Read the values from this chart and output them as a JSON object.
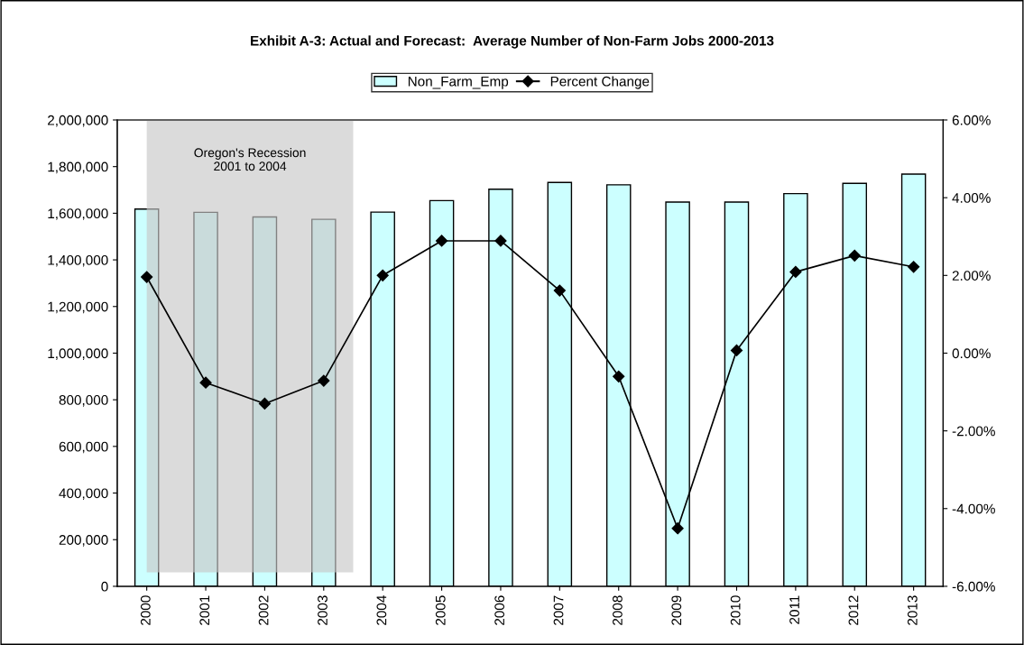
{
  "chart_data": {
    "type": "bar",
    "title": "Exhibit A-3: Actual and Forecast:  Average Number of Non-Farm Jobs 2000-2013",
    "categories": [
      "2000",
      "2001",
      "2002",
      "2003",
      "2004",
      "2005",
      "2006",
      "2007",
      "2008",
      "2009",
      "2010",
      "2011",
      "2012",
      "2013"
    ],
    "series": [
      {
        "name": "Non_Farm_Emp",
        "color": "#ccffff",
        "values": [
          1618000,
          1604000,
          1584000,
          1574000,
          1605000,
          1654000,
          1703000,
          1732000,
          1722000,
          1648000,
          1648000,
          1684000,
          1728000,
          1768000
        ]
      },
      {
        "name": "Percent Change",
        "type": "line",
        "axis": "y2",
        "color": "#000000",
        "marker": "diamond",
        "values": [
          1.96,
          -0.76,
          -1.3,
          -0.71,
          2.0,
          2.89,
          2.89,
          1.61,
          -0.6,
          -4.51,
          0.07,
          2.09,
          2.51,
          2.22
        ]
      }
    ],
    "ylim": [
      0,
      2000000
    ],
    "yticks": [
      {
        "value": 0,
        "label": "0"
      },
      {
        "value": 200000,
        "label": "200,000"
      },
      {
        "value": 400000,
        "label": "400,000"
      },
      {
        "value": 600000,
        "label": "600,000"
      },
      {
        "value": 800000,
        "label": "800,000"
      },
      {
        "value": 1000000,
        "label": "1,000,000"
      },
      {
        "value": 1200000,
        "label": "1,200,000"
      },
      {
        "value": 1400000,
        "label": "1,400,000"
      },
      {
        "value": 1600000,
        "label": "1,600,000"
      },
      {
        "value": 1800000,
        "label": "1,800,000"
      },
      {
        "value": 2000000,
        "label": "2,000,000"
      }
    ],
    "y2lim": [
      -6,
      6
    ],
    "y2ticks": [
      {
        "value": -6,
        "label": "-6.00%"
      },
      {
        "value": -4,
        "label": "-4.00%"
      },
      {
        "value": -2,
        "label": "-2.00%"
      },
      {
        "value": 0,
        "label": "0.00%"
      },
      {
        "value": 2,
        "label": "2.00%"
      },
      {
        "value": 4,
        "label": "4.00%"
      },
      {
        "value": 6,
        "label": "6.00%"
      }
    ],
    "bands": [
      {
        "axis": "x",
        "from": "2000",
        "to": "2004",
        "label": "Oregon's Recession\n2001 to 2004",
        "color": "#c8c8c8"
      }
    ],
    "grid": false,
    "legend": "top"
  }
}
